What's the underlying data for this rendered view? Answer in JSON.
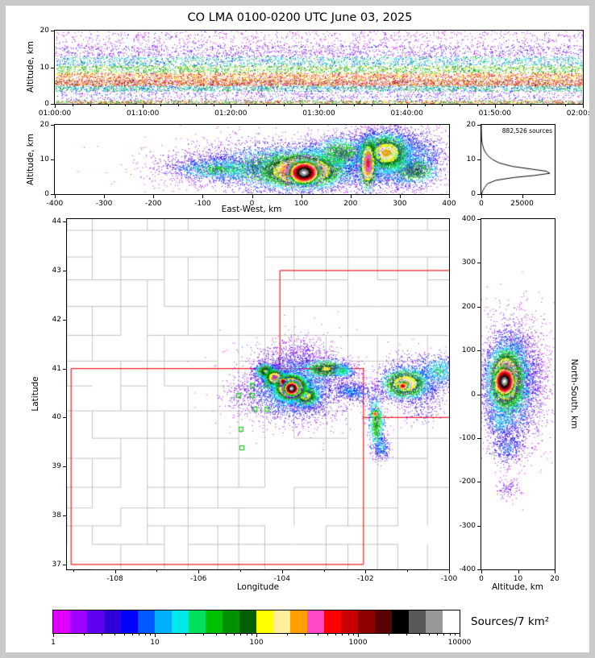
{
  "title": "CO LMA 0100-0200 UTC June 03, 2025",
  "colors": {
    "background": "#ffffff",
    "frame": "#c9c9c9",
    "state_border": "#ee2222",
    "county_line": "#b4b4b4",
    "station_marker": "#22cc22",
    "histogram_line": "#000000"
  },
  "chart_data": [
    {
      "id": "time_height",
      "type": "scatter",
      "ylabel": "Altitude, km",
      "ylim": [
        0,
        20
      ],
      "yticks": [
        0,
        10,
        20
      ],
      "x_tick_labels": [
        "01:00:00",
        "01:10:00",
        "01:20:00",
        "01:30:00",
        "01:40:00",
        "01:50:00",
        "02:00:00"
      ],
      "strata": [
        {
          "alt": [
            0,
            1
          ],
          "lo": 8,
          "hi": 17,
          "n": 1900,
          "bias": 1
        },
        {
          "alt": [
            1,
            3.5
          ],
          "lo": 0,
          "hi": 5,
          "n": 900,
          "bias": 1
        },
        {
          "alt": [
            3.5,
            5
          ],
          "lo": 4,
          "hi": 11,
          "n": 1900,
          "bias": 1
        },
        {
          "alt": [
            5,
            6.6
          ],
          "lo": 14,
          "hi": 23,
          "n": 3600,
          "bias": 2.2
        },
        {
          "alt": [
            6.6,
            8.5
          ],
          "lo": 12,
          "hi": 18,
          "n": 3000,
          "bias": 1.3
        },
        {
          "alt": [
            8.5,
            10.5
          ],
          "lo": 8,
          "hi": 13,
          "n": 2300,
          "bias": 1
        },
        {
          "alt": [
            10.5,
            13
          ],
          "lo": 4,
          "hi": 9,
          "n": 1900,
          "bias": 1
        },
        {
          "alt": [
            13,
            16
          ],
          "lo": 0,
          "hi": 4,
          "n": 1400,
          "bias": 1
        },
        {
          "alt": [
            16,
            20
          ],
          "lo": 0,
          "hi": 2,
          "n": 800,
          "bias": 1
        }
      ]
    },
    {
      "id": "ew_height",
      "type": "scatter",
      "xlabel": "East-West, km",
      "ylabel": "Altitude, km",
      "xlim": [
        -400,
        400
      ],
      "ylim": [
        0,
        20
      ],
      "xticks": [
        -400,
        -300,
        -200,
        -100,
        0,
        100,
        200,
        300,
        400
      ],
      "yticks": [
        0,
        10,
        20
      ],
      "blobs": [
        {
          "x": 60,
          "y": 8.5,
          "sx": 120,
          "sy": 3.8,
          "peak": 5,
          "n": 2200
        },
        {
          "x": -90,
          "y": 8,
          "sx": 60,
          "sy": 2.2,
          "peak": 3,
          "n": 500
        },
        {
          "x": 280,
          "y": 11,
          "sx": 60,
          "sy": 5.5,
          "peak": 4,
          "n": 1300
        },
        {
          "x": 80,
          "y": 7.5,
          "sx": 80,
          "sy": 3.2,
          "peak": 12,
          "n": 3200
        },
        {
          "x": -70,
          "y": 7.2,
          "sx": 45,
          "sy": 1.6,
          "peak": 9,
          "n": 800
        },
        {
          "x": 180,
          "y": 12,
          "sx": 35,
          "sy": 2.5,
          "peak": 10,
          "n": 1300
        },
        {
          "x": 335,
          "y": 12,
          "sx": 28,
          "sy": 3,
          "peak": 6,
          "n": 500
        },
        {
          "x": 325,
          "y": 7,
          "sx": 28,
          "sy": 2.2,
          "peak": 11,
          "n": 900
        },
        {
          "x": 272,
          "y": 10.5,
          "sx": 42,
          "sy": 4.5,
          "peak": 8,
          "n": 1800
        },
        {
          "x": 272,
          "y": 12,
          "sx": 26,
          "sy": 2.8,
          "peak": 14,
          "n": 2200
        },
        {
          "x": 235,
          "y": 9,
          "sx": 10,
          "sy": 4,
          "peak": 16,
          "n": 1200
        },
        {
          "x": 100,
          "y": 6.8,
          "sx": 42,
          "sy": 2.6,
          "peak": 17,
          "n": 3200
        },
        {
          "x": 105,
          "y": 6.3,
          "sx": 15,
          "sy": 1.6,
          "peak": 23,
          "n": 2600
        }
      ]
    },
    {
      "id": "altitude_histogram",
      "type": "line",
      "annotation": "882,526 sources",
      "xlim": [
        0,
        45000
      ],
      "ylim": [
        0,
        20
      ],
      "xticks": [
        0,
        25000
      ],
      "yticks": [
        0,
        10,
        20
      ],
      "profile": [
        [
          0,
          200
        ],
        [
          1,
          900
        ],
        [
          2,
          2200
        ],
        [
          3,
          3800
        ],
        [
          4,
          9000
        ],
        [
          4.8,
          20000
        ],
        [
          5.4,
          33000
        ],
        [
          6,
          42000
        ],
        [
          6.6,
          40000
        ],
        [
          7.2,
          31000
        ],
        [
          8,
          19000
        ],
        [
          9,
          11000
        ],
        [
          10,
          6800
        ],
        [
          11,
          4200
        ],
        [
          12,
          2600
        ],
        [
          13,
          1500
        ],
        [
          14,
          850
        ],
        [
          15,
          420
        ],
        [
          16,
          200
        ],
        [
          17,
          100
        ],
        [
          18,
          50
        ],
        [
          19,
          15
        ],
        [
          20,
          5
        ]
      ]
    },
    {
      "id": "plan_map",
      "type": "scatter",
      "xlabel": "Longitude",
      "ylabel": "Latitude",
      "xlim": [
        -109.15,
        -100.0
      ],
      "ylim": [
        36.9,
        44.05
      ],
      "xticks": [
        -108,
        -106,
        -104,
        -102,
        -100
      ],
      "xminor": [
        -109,
        -107,
        -105,
        -103,
        -101
      ],
      "yticks": [
        37,
        38,
        39,
        40,
        41,
        42,
        43,
        44
      ],
      "state_borders": [
        [
          -109.05,
          37.0,
          -109.05,
          41.0
        ],
        [
          -109.05,
          41.0,
          -102.05,
          41.0
        ],
        [
          -102.05,
          37.0,
          -102.05,
          41.0
        ],
        [
          -109.05,
          37.0,
          -102.05,
          37.0
        ],
        [
          -104.05,
          41.0,
          -104.05,
          43.0
        ],
        [
          -104.05,
          43.0,
          -100.0,
          43.0
        ],
        [
          -102.05,
          40.0,
          -100.0,
          40.0
        ]
      ],
      "stations": [
        [
          -104.71,
          40.66
        ],
        [
          -104.38,
          40.66
        ],
        [
          -105.04,
          40.45
        ],
        [
          -104.71,
          40.45
        ],
        [
          -104.65,
          40.17
        ],
        [
          -104.36,
          40.17
        ],
        [
          -104.98,
          39.76
        ],
        [
          -104.96,
          39.38
        ]
      ],
      "blobs": [
        {
          "x": -103.7,
          "y": 40.65,
          "sx": 0.75,
          "sy": 0.42,
          "peak": 4,
          "n": 1900
        },
        {
          "x": -103.6,
          "y": 41.3,
          "sx": 0.4,
          "sy": 0.18,
          "peak": 2,
          "n": 350
        },
        {
          "x": -104.9,
          "y": 40.45,
          "sx": 0.3,
          "sy": 0.2,
          "peak": 2,
          "n": 150
        },
        {
          "x": -102.4,
          "y": 40.55,
          "sx": 0.18,
          "sy": 0.09,
          "peak": 6,
          "n": 300
        },
        {
          "x": -102.1,
          "y": 40.5,
          "sx": 0.25,
          "sy": 0.12,
          "peak": 5,
          "n": 220
        },
        {
          "x": -100.7,
          "y": 40.2,
          "sx": 0.3,
          "sy": 0.2,
          "peak": 3,
          "n": 180
        },
        {
          "x": -103.75,
          "y": 40.62,
          "sx": 0.45,
          "sy": 0.28,
          "peak": 9,
          "n": 2600
        },
        {
          "x": -102.95,
          "y": 41.0,
          "sx": 0.28,
          "sy": 0.1,
          "peak": 12,
          "n": 800
        },
        {
          "x": -102.55,
          "y": 40.95,
          "sx": 0.15,
          "sy": 0.08,
          "peak": 8,
          "n": 300
        },
        {
          "x": -104.4,
          "y": 40.95,
          "sx": 0.13,
          "sy": 0.08,
          "peak": 12,
          "n": 700
        },
        {
          "x": -104.18,
          "y": 40.82,
          "sx": 0.13,
          "sy": 0.09,
          "peak": 15,
          "n": 1100
        },
        {
          "x": -103.45,
          "y": 40.45,
          "sx": 0.18,
          "sy": 0.11,
          "peak": 13,
          "n": 900
        },
        {
          "x": -100.8,
          "y": 40.78,
          "sx": 0.45,
          "sy": 0.26,
          "peak": 6,
          "n": 1100
        },
        {
          "x": -100.25,
          "y": 40.95,
          "sx": 0.22,
          "sy": 0.16,
          "peak": 8,
          "n": 450
        },
        {
          "x": -101.05,
          "y": 40.7,
          "sx": 0.28,
          "sy": 0.16,
          "peak": 14,
          "n": 1600
        },
        {
          "x": -101.12,
          "y": 40.65,
          "sx": 0.07,
          "sy": 0.05,
          "peak": 17,
          "n": 250
        },
        {
          "x": -101.75,
          "y": 39.9,
          "sx": 0.1,
          "sy": 0.3,
          "peak": 10,
          "n": 700
        },
        {
          "x": -101.78,
          "y": 40.08,
          "sx": 0.05,
          "sy": 0.04,
          "peak": 16,
          "n": 150
        },
        {
          "x": -101.62,
          "y": 39.4,
          "sx": 0.09,
          "sy": 0.13,
          "peak": 6,
          "n": 250
        },
        {
          "x": -103.8,
          "y": 40.62,
          "sx": 0.2,
          "sy": 0.14,
          "peak": 17,
          "n": 2600
        },
        {
          "x": -103.98,
          "y": 40.74,
          "sx": 0.05,
          "sy": 0.04,
          "peak": 20,
          "n": 450
        },
        {
          "x": -103.78,
          "y": 40.6,
          "sx": 0.09,
          "sy": 0.07,
          "peak": 23,
          "n": 2000
        }
      ]
    },
    {
      "id": "ns_height",
      "type": "scatter",
      "xlabel": "Altitude, km",
      "ylabel": "North-South, km",
      "xlim": [
        0,
        20
      ],
      "ylim": [
        -400,
        400
      ],
      "xticks": [
        0,
        10,
        20
      ],
      "yticks": [
        400,
        300,
        200,
        100,
        0,
        -100,
        -200,
        -300,
        -400
      ],
      "blobs": [
        {
          "x": 8.5,
          "y": 25,
          "sx": 5,
          "sy": 80,
          "peak": 4,
          "n": 2000
        },
        {
          "x": 13,
          "y": 45,
          "sx": 2.5,
          "sy": 40,
          "peak": 2,
          "n": 450
        },
        {
          "x": 7,
          "y": -120,
          "sx": 2.4,
          "sy": 22,
          "peak": 5,
          "n": 420
        },
        {
          "x": 7,
          "y": -215,
          "sx": 1.8,
          "sy": 12,
          "peak": 2,
          "n": 110
        },
        {
          "x": 9,
          "y": 115,
          "sx": 2,
          "sy": 14,
          "peak": 3,
          "n": 160
        },
        {
          "x": 5,
          "y": -60,
          "sx": 2,
          "sy": 18,
          "peak": 7,
          "n": 300
        },
        {
          "x": 7.5,
          "y": 30,
          "sx": 3.4,
          "sy": 55,
          "peak": 11,
          "n": 2600
        },
        {
          "x": 6.6,
          "y": 35,
          "sx": 2.4,
          "sy": 35,
          "peak": 17,
          "n": 2600
        },
        {
          "x": 6.2,
          "y": 30,
          "sx": 1.4,
          "sy": 16,
          "peak": 23,
          "n": 2000
        }
      ]
    },
    {
      "id": "colorbar",
      "type": "colorbar",
      "label": "Sources/7 km²",
      "scale": "log",
      "tick_labels": [
        "1",
        "10",
        "100",
        "1000",
        "10000"
      ],
      "colors": [
        "#E000FF",
        "#A000FF",
        "#6000F0",
        "#3000D8",
        "#0000FF",
        "#0058FF",
        "#00B0FF",
        "#00E8E8",
        "#00E060",
        "#00C000",
        "#009000",
        "#006000",
        "#FFFF00",
        "#FFF0A0",
        "#FFA000",
        "#FF48C8",
        "#FF0000",
        "#C80000",
        "#900000",
        "#580000",
        "#000000",
        "#585858",
        "#989898",
        "#FFFFFF"
      ]
    }
  ]
}
